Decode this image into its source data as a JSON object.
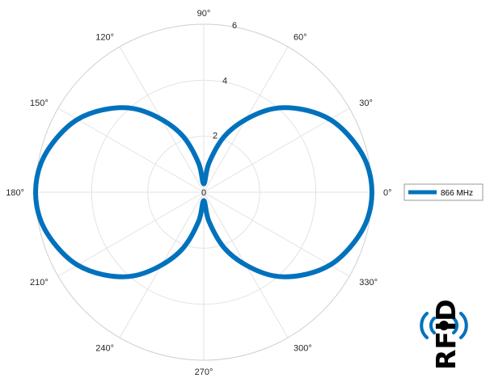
{
  "chart_data": {
    "type": "polar-line",
    "title": "",
    "r_range": [
      0,
      6
    ],
    "r_ticks": [
      0,
      2,
      4,
      6
    ],
    "r_tick_labels": [
      "0",
      "2",
      "4",
      "6"
    ],
    "theta_ticks_deg": [
      0,
      30,
      60,
      90,
      120,
      150,
      180,
      210,
      240,
      270,
      300,
      330
    ],
    "theta_tick_labels": [
      "0°",
      "30°",
      "60°",
      "90°",
      "120°",
      "150°",
      "180°",
      "210°",
      "240°",
      "270°",
      "300°",
      "330°"
    ],
    "grid": true,
    "legend_position": "right",
    "series": [
      {
        "name": "866 MHz",
        "color": "#0072BD",
        "theta_deg": [
          0,
          10,
          20,
          30,
          40,
          50,
          60,
          70,
          80,
          90,
          100,
          110,
          120,
          130,
          140,
          150,
          160,
          170,
          180,
          190,
          200,
          210,
          220,
          230,
          240,
          250,
          260,
          270,
          280,
          290,
          300,
          310,
          320,
          330,
          340,
          350,
          360
        ],
        "r": [
          6.0,
          5.9,
          5.6,
          5.2,
          4.6,
          3.9,
          3.0,
          2.1,
          1.05,
          0.3,
          1.05,
          2.1,
          3.0,
          3.9,
          4.6,
          5.2,
          5.6,
          5.9,
          6.0,
          5.9,
          5.6,
          5.2,
          4.6,
          3.9,
          3.0,
          2.1,
          1.05,
          0.3,
          1.05,
          2.1,
          3.0,
          3.9,
          4.6,
          5.2,
          5.6,
          5.9,
          6.0
        ]
      }
    ]
  },
  "logo": {
    "text": "RFID",
    "icon": "rfid-wave-icon",
    "color": "#000000",
    "accent": "#0072BD"
  }
}
